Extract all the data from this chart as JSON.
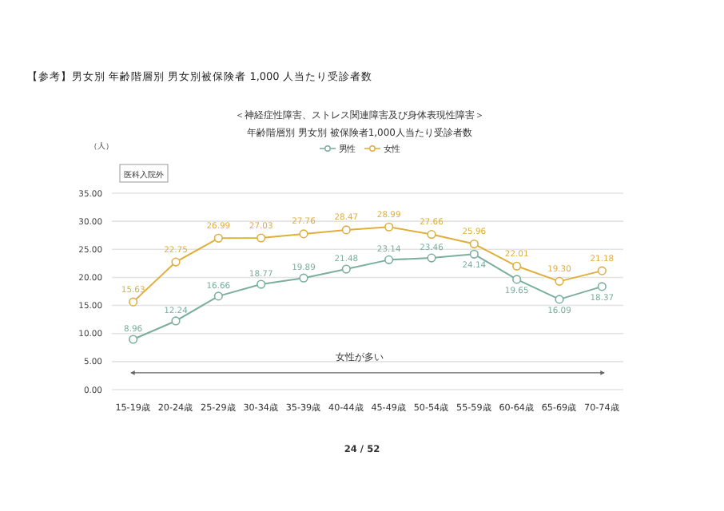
{
  "chart_data": {
    "type": "line",
    "title": "【参考】男女別 年齢階層別 男女別被保険者 1,000 人当たり受診者数",
    "subtitle": "＜神経症性障害、ストレス関連障害及び身体表現性障害＞",
    "ylabel": "（人）",
    "categories": [
      "15-19歳",
      "20-24歳",
      "25-29歳",
      "30-34歳",
      "35-39歳",
      "40-44歳",
      "45-49歳",
      "50-54歳",
      "55-59歳",
      "60-64歳",
      "65-69歳",
      "70-74歳"
    ],
    "series": [
      {
        "name": "男性",
        "color": "#7aae9e",
        "values": [
          8.96,
          12.24,
          16.66,
          18.77,
          19.89,
          21.48,
          23.14,
          23.46,
          24.14,
          19.65,
          16.09,
          18.37
        ],
        "value_labels": [
          "8.96",
          "12.24",
          "16.66",
          "18.77",
          "19.89",
          "21.48",
          "23.14",
          "23.46",
          "24.14",
          "19.65",
          "16.09",
          "18.37"
        ]
      },
      {
        "name": "女性",
        "color": "#e0ae3c",
        "values": [
          15.63,
          22.75,
          26.99,
          27.03,
          27.76,
          28.47,
          28.99,
          27.66,
          25.96,
          22.01,
          19.3,
          21.18
        ],
        "value_labels": [
          "15.63",
          "22.75",
          "26.99",
          "27.03",
          "27.76",
          "28.47",
          "28.99",
          "27.66",
          "25.96",
          "22.01",
          "19.30",
          "21.18"
        ]
      }
    ],
    "ylim": [
      0,
      35
    ],
    "yticks": [
      {
        "value": 0,
        "label": "0.00"
      },
      {
        "value": 5,
        "label": "5.00"
      },
      {
        "value": 10,
        "label": "10.00"
      },
      {
        "value": 15,
        "label": "15.00"
      },
      {
        "value": 20,
        "label": "20.00"
      },
      {
        "value": 25,
        "label": "25.00"
      },
      {
        "value": 30,
        "label": "30.00"
      },
      {
        "value": 35,
        "label": "35.00"
      }
    ],
    "grid": "y",
    "legend": "top",
    "marker": "circle",
    "line_style": "solid",
    "ref_lines": [
      {
        "axis": "y",
        "value": 3,
        "label": "女性が多い",
        "color": "#666666"
      }
    ],
    "annotations": [
      "年齢階層別 男女別 被保険者1,000人当たり受診者数",
      "医科入院外",
      "24 / 52"
    ]
  }
}
